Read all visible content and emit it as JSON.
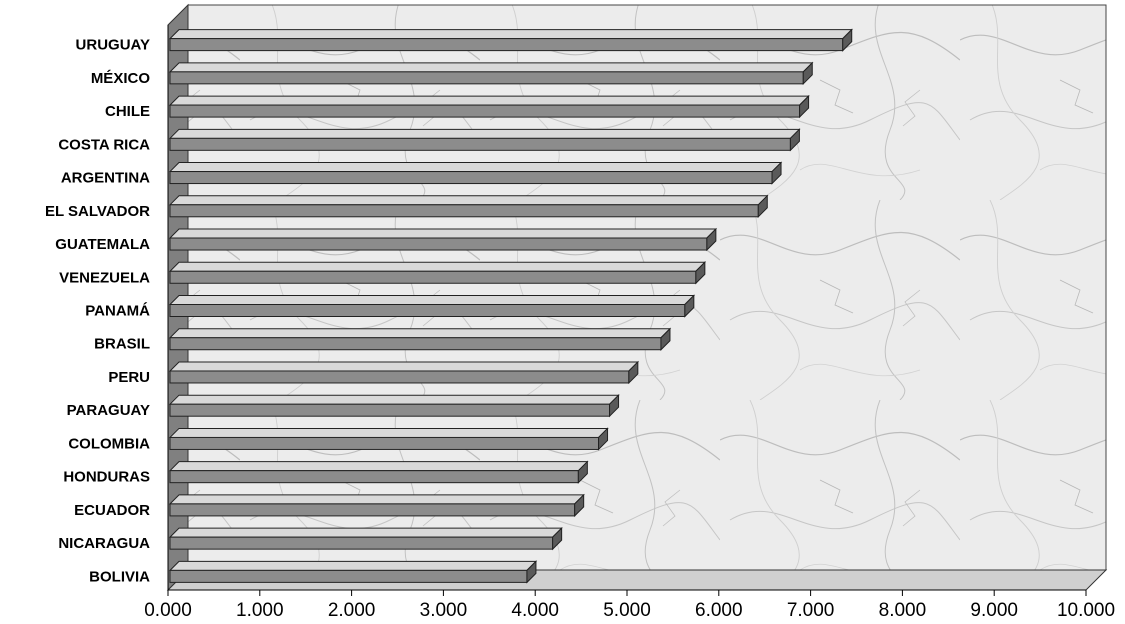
{
  "chart_data": {
    "type": "bar",
    "orientation": "horizontal",
    "style": "3d",
    "title": "",
    "xlabel": "",
    "ylabel": "",
    "categories": [
      "URUGUAY",
      "MÉXICO",
      "CHILE",
      "COSTA RICA",
      "ARGENTINA",
      "EL SALVADOR",
      "GUATEMALA",
      "VENEZUELA",
      "PANAMÁ",
      "BRASIL",
      "PERU",
      "PARAGUAY",
      "COLOMBIA",
      "HONDURAS",
      "ECUADOR",
      "NICARAGUA",
      "BOLIVIA"
    ],
    "values": [
      7.35,
      6.92,
      6.88,
      6.78,
      6.58,
      6.43,
      5.87,
      5.75,
      5.63,
      5.37,
      5.02,
      4.81,
      4.69,
      4.47,
      4.43,
      4.19,
      3.91
    ],
    "xlim": [
      0,
      10
    ],
    "xticks": [
      "0.000",
      "1.000",
      "2.000",
      "3.000",
      "4.000",
      "5.000",
      "6.000",
      "7.000",
      "8.000",
      "9.000",
      "10.000"
    ],
    "grid": false,
    "legend": "none",
    "colors": {
      "bar_front": "#8c8c8c",
      "bar_top": "#d9d9d9",
      "bar_side": "#5a5a5a",
      "left_wall": "#808080",
      "back_wall": "#e9e9e9"
    }
  }
}
